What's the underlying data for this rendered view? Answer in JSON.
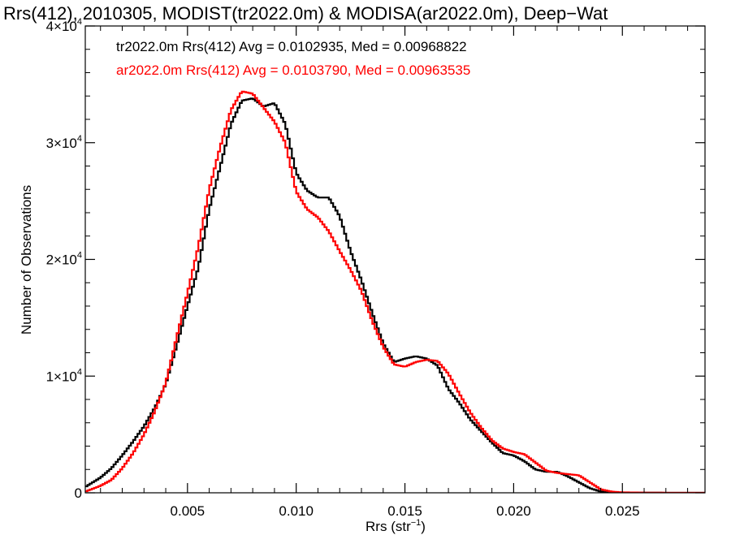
{
  "chart_data": {
    "type": "line",
    "title": "Rrs(412), 2010305, MODIST(tr2022.0m) & MODISA(ar2022.0m), Deep−Wat",
    "xlabel": "Rrs (str",
    "xlabel_sup": "−1",
    "xlabel_end": ")",
    "ylabel": "Number of Observations",
    "xlim": [
      0.0003,
      0.0288
    ],
    "ylim": [
      0,
      40000
    ],
    "grid": false,
    "x_ticks": [
      0.005,
      0.01,
      0.015,
      0.02,
      0.025
    ],
    "x_tick_labels": [
      "0.005",
      "0.010",
      "0.015",
      "0.020",
      "0.025"
    ],
    "y_ticks": [
      {
        "value": 0,
        "base": "0",
        "exp": ""
      },
      {
        "value": 10000,
        "base": "1×10",
        "exp": "4"
      },
      {
        "value": 20000,
        "base": "2×10",
        "exp": "4"
      },
      {
        "value": 30000,
        "base": "3×10",
        "exp": "4"
      },
      {
        "value": 40000,
        "base": "4×10",
        "exp": "4"
      }
    ],
    "series": [
      {
        "name": "tr2022.0m Rrs(412) Avg = 0.0102935, Med = 0.00968822",
        "color": "#000000",
        "x": [
          0.0003,
          0.001,
          0.0015,
          0.002,
          0.0025,
          0.003,
          0.0035,
          0.004,
          0.0045,
          0.005,
          0.0055,
          0.006,
          0.0065,
          0.007,
          0.0075,
          0.008,
          0.0085,
          0.009,
          0.0095,
          0.01,
          0.0105,
          0.011,
          0.0115,
          0.012,
          0.0125,
          0.013,
          0.0135,
          0.014,
          0.0145,
          0.015,
          0.0155,
          0.016,
          0.0165,
          0.017,
          0.0175,
          0.018,
          0.0185,
          0.019,
          0.0195,
          0.02,
          0.0205,
          0.021,
          0.0215,
          0.022,
          0.0225,
          0.023,
          0.0235,
          0.024,
          0.0245,
          0.025,
          0.026,
          0.027,
          0.0288
        ],
        "y": [
          500,
          1300,
          2100,
          3200,
          4400,
          5700,
          7300,
          9300,
          12600,
          16000,
          19300,
          24300,
          27900,
          31600,
          33600,
          33800,
          33100,
          33400,
          31600,
          27400,
          25900,
          25300,
          25300,
          23700,
          20700,
          18200,
          15400,
          12800,
          11200,
          11500,
          11700,
          11500,
          10900,
          8900,
          7700,
          6300,
          5300,
          4300,
          3400,
          3200,
          2700,
          2000,
          1800,
          1800,
          1400,
          900,
          400,
          100,
          40,
          20,
          10,
          5,
          0
        ]
      },
      {
        "name": "ar2022.0m Rrs(412) Avg = 0.0103790, Med = 0.00963535",
        "color": "#ff0000",
        "x": [
          0.0003,
          0.001,
          0.0015,
          0.002,
          0.0025,
          0.003,
          0.0035,
          0.004,
          0.0045,
          0.005,
          0.0055,
          0.006,
          0.0065,
          0.007,
          0.0075,
          0.008,
          0.0085,
          0.009,
          0.0095,
          0.01,
          0.0105,
          0.011,
          0.0115,
          0.012,
          0.0125,
          0.013,
          0.0135,
          0.014,
          0.0145,
          0.015,
          0.0155,
          0.016,
          0.0165,
          0.017,
          0.0175,
          0.018,
          0.0185,
          0.019,
          0.0195,
          0.02,
          0.0205,
          0.021,
          0.0215,
          0.022,
          0.0225,
          0.023,
          0.0235,
          0.024,
          0.0245,
          0.025,
          0.026,
          0.027,
          0.0288
        ],
        "y": [
          100,
          600,
          1100,
          2100,
          3400,
          5000,
          7000,
          9400,
          13300,
          17100,
          21100,
          26000,
          29600,
          32800,
          34400,
          34200,
          33000,
          31800,
          30000,
          25800,
          24300,
          23600,
          22400,
          20700,
          19100,
          17300,
          14700,
          12500,
          11000,
          10800,
          11200,
          11400,
          11300,
          10200,
          8500,
          6900,
          5600,
          4500,
          3800,
          3500,
          3300,
          2600,
          1900,
          1700,
          1600,
          1500,
          900,
          300,
          100,
          40,
          15,
          5,
          0
        ]
      }
    ]
  }
}
